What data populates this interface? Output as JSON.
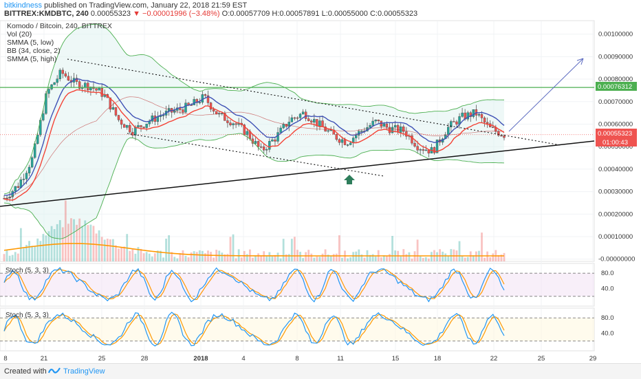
{
  "header": {
    "author": "bitkindness",
    "published": "published on TradingView.com, January 22, 2018 21:59 EST",
    "symbol": "BITTREX:KMDBTC, 240",
    "last": "0.00055323",
    "change": "▼ −0.00001996 (−3.48%)",
    "ohlc": "O:0.00057709 H:0.00057891 L:0.00055000 C:0.00055323"
  },
  "legend": {
    "title": "Komodo / Bitcoin, 240, BITTREX",
    "items": [
      "Vol (20)",
      "SMMA (5, low)",
      "BB (34, close, 2)",
      "SMMA (5, high)"
    ]
  },
  "stoch_labels": [
    "Stoch (5, 3, 3)",
    "Stoch (5, 3, 3)"
  ],
  "footer": {
    "created": "Created with",
    "brand": "TradingView"
  },
  "colors": {
    "up": "#26a69a",
    "down": "#ef5350",
    "smma_high": "#3f51b5",
    "smma_low": "#f44336",
    "bb_band": "#4caf50",
    "bb_basis": "#b71c1c",
    "volume_ma": "#ff9800",
    "stoch_k": "#2196f3",
    "stoch_d": "#ff9800",
    "resistance": "#4caf50",
    "last_price": "#ef5350",
    "arrow": "#5c6bc0",
    "up_arrow": "#2e7d5b"
  },
  "chart_data": [
    {
      "type": "candlestick",
      "title": "Komodo / Bitcoin, 240, BITTREX",
      "x_ticks": [
        "8",
        "21",
        "25",
        "28",
        "2018",
        "4",
        "8",
        "11",
        "15",
        "18",
        "22",
        "25",
        "29"
      ],
      "y_ticks": [
        "0.00100000",
        "0.00090000",
        "0.00080000",
        "0.00070000",
        "0.00060000",
        "0.00050000",
        "0.00040000",
        "0.00030000",
        "0.00020000",
        "0.00010000",
        "-0.00000000"
      ],
      "ylim": [
        -1e-05,
        0.00106
      ],
      "price_labels": {
        "resistance": "0.00076312",
        "last": "0.00055323",
        "countdown": "01:00:43"
      },
      "resistance_level": 0.00076312,
      "last_price": 0.00055323,
      "close_path": [
        {
          "x": "Dec 18",
          "y": 0.00027
        },
        {
          "x": "Dec 19",
          "y": 0.00033
        },
        {
          "x": "Dec 20",
          "y": 0.00045
        },
        {
          "x": "Dec 21",
          "y": 0.00074
        },
        {
          "x": "Dec 22",
          "y": 0.00083
        },
        {
          "x": "Dec 23",
          "y": 0.00078
        },
        {
          "x": "Dec 24",
          "y": 0.00077
        },
        {
          "x": "Dec 25",
          "y": 0.00073
        },
        {
          "x": "Dec 26",
          "y": 0.00062
        },
        {
          "x": "Dec 27",
          "y": 0.00057
        },
        {
          "x": "Dec 28",
          "y": 0.00061
        },
        {
          "x": "Dec 29",
          "y": 0.00064
        },
        {
          "x": "Dec 30",
          "y": 0.00066
        },
        {
          "x": "Dec 31",
          "y": 0.00068
        },
        {
          "x": "Jan 1",
          "y": 0.00072
        },
        {
          "x": "Jan 2",
          "y": 0.00064
        },
        {
          "x": "Jan 3",
          "y": 0.00061
        },
        {
          "x": "Jan 4",
          "y": 0.00056
        },
        {
          "x": "Jan 5",
          "y": 0.00048
        },
        {
          "x": "Jan 6",
          "y": 0.00054
        },
        {
          "x": "Jan 7",
          "y": 0.00062
        },
        {
          "x": "Jan 8",
          "y": 0.00065
        },
        {
          "x": "Jan 9",
          "y": 0.0006
        },
        {
          "x": "Jan 10",
          "y": 0.00055
        },
        {
          "x": "Jan 11",
          "y": 0.00052
        },
        {
          "x": "Jan 12",
          "y": 0.00057
        },
        {
          "x": "Jan 13",
          "y": 0.00061
        },
        {
          "x": "Jan 14",
          "y": 0.00058
        },
        {
          "x": "Jan 15",
          "y": 0.00057
        },
        {
          "x": "Jan 16",
          "y": 0.0005
        },
        {
          "x": "Jan 17",
          "y": 0.00048
        },
        {
          "x": "Jan 18",
          "y": 0.00058
        },
        {
          "x": "Jan 19",
          "y": 0.00063
        },
        {
          "x": "Jan 20",
          "y": 0.00065
        },
        {
          "x": "Jan 21",
          "y": 0.00058
        },
        {
          "x": "Jan 22",
          "y": 0.00055323
        }
      ],
      "volume_ma": "orange line, decaying from a peak near Dec 22"
    },
    {
      "type": "line",
      "title": "Stoch (5, 3, 3)",
      "y_ticks": [
        "80.0",
        "40.0"
      ],
      "ylim": [
        0,
        100
      ],
      "bands": [
        80,
        20
      ]
    },
    {
      "type": "line",
      "title": "Stoch (5, 3, 3)",
      "y_ticks": [
        "80.0",
        "40.0"
      ],
      "ylim": [
        0,
        100
      ],
      "bands": [
        80,
        20
      ]
    }
  ]
}
